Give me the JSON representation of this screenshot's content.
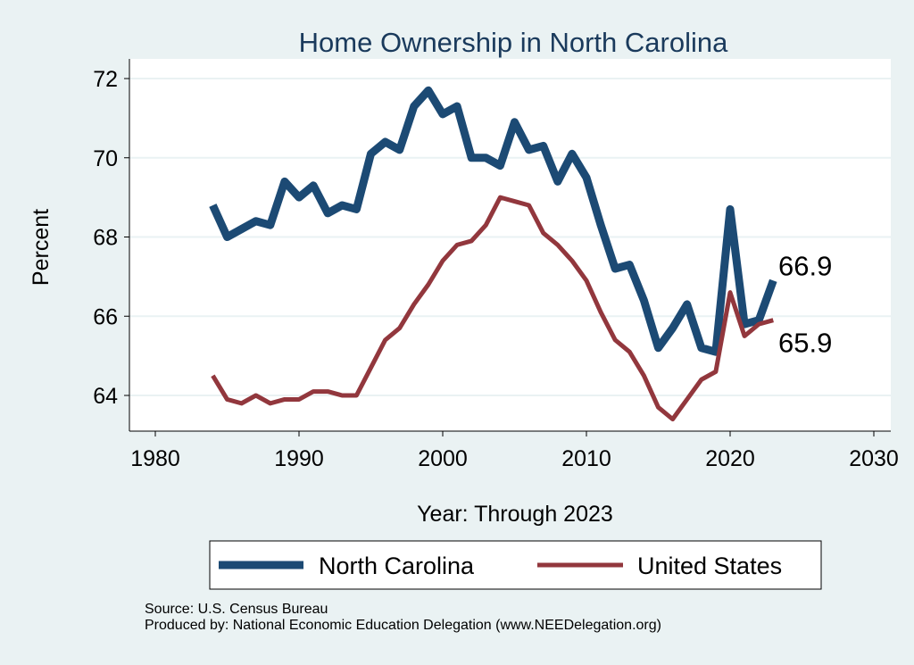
{
  "chart_data": {
    "type": "line",
    "title": "Home Ownership in North Carolina",
    "xlabel": "Year: Through 2023",
    "ylabel": "Percent",
    "xlim": [
      1980,
      2030
    ],
    "ylim": [
      63.2,
      72.6
    ],
    "xticks": [
      1980,
      1990,
      2000,
      2010,
      2020,
      2030
    ],
    "yticks": [
      64,
      66,
      68,
      70,
      72
    ],
    "grid": true,
    "legend_position": "bottom",
    "x": [
      1984,
      1985,
      1986,
      1987,
      1988,
      1989,
      1990,
      1991,
      1992,
      1993,
      1994,
      1995,
      1996,
      1997,
      1998,
      1999,
      2000,
      2001,
      2002,
      2003,
      2004,
      2005,
      2006,
      2007,
      2008,
      2009,
      2010,
      2011,
      2012,
      2013,
      2014,
      2015,
      2016,
      2017,
      2018,
      2019,
      2020,
      2021,
      2022,
      2023
    ],
    "series": [
      {
        "name": "North Carolina",
        "color": "#1c4a74",
        "end_label": "66.9",
        "values": [
          68.8,
          68.0,
          68.2,
          68.4,
          68.3,
          69.4,
          69.0,
          69.3,
          68.6,
          68.8,
          68.7,
          70.1,
          70.4,
          70.2,
          71.3,
          71.7,
          71.1,
          71.3,
          70.0,
          70.0,
          69.8,
          70.9,
          70.2,
          70.3,
          69.4,
          70.1,
          69.5,
          68.3,
          67.2,
          67.3,
          66.4,
          65.2,
          65.7,
          66.3,
          65.2,
          65.1,
          68.7,
          65.8,
          65.9,
          66.9
        ]
      },
      {
        "name": "United States",
        "color": "#92373d",
        "end_label": "65.9",
        "values": [
          64.5,
          63.9,
          63.8,
          64.0,
          63.8,
          63.9,
          63.9,
          64.1,
          64.1,
          64.0,
          64.0,
          64.7,
          65.4,
          65.7,
          66.3,
          66.8,
          67.4,
          67.8,
          67.9,
          68.3,
          69.0,
          68.9,
          68.8,
          68.1,
          67.8,
          67.4,
          66.9,
          66.1,
          65.4,
          65.1,
          64.5,
          63.7,
          63.4,
          63.9,
          64.4,
          64.6,
          66.6,
          65.5,
          65.8,
          65.9
        ]
      }
    ]
  },
  "notes": {
    "source": "Source: U.S. Census Bureau",
    "produced": "Produced by: National Economic Education Delegation (www.NEEDelegation.org)"
  }
}
